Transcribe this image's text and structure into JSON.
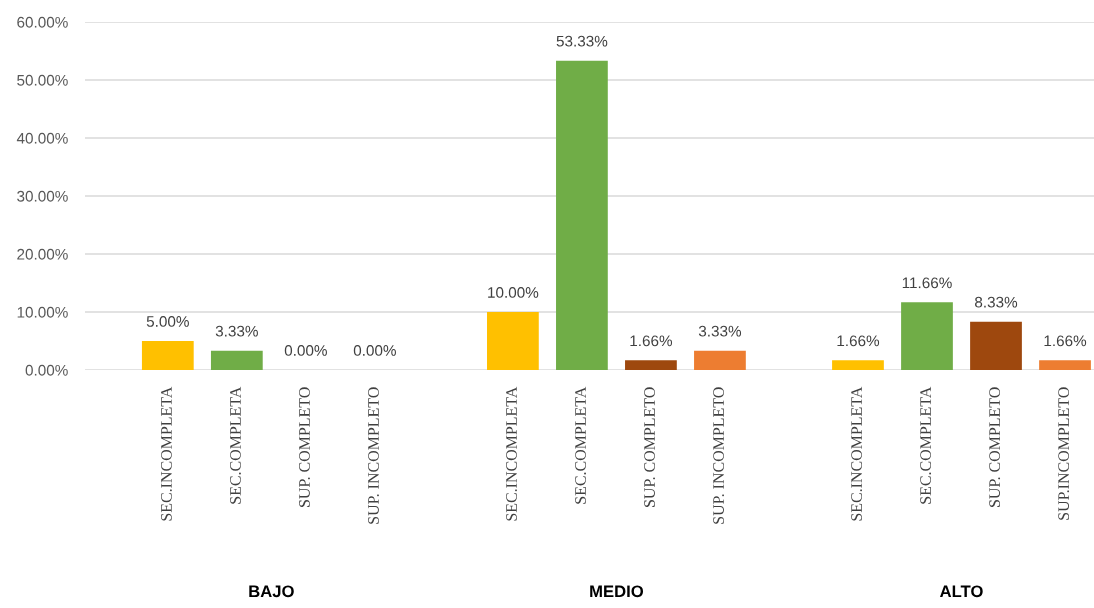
{
  "chart_data": {
    "type": "bar",
    "categories": [
      "SEC.INCOMPLETA",
      "SEC.COMPLETA",
      "SUP. COMPLETO",
      "SUP. INCOMPLETO",
      null,
      "SEC.INCOMPLETA",
      "SEC.COMPLETA",
      "SUP. COMPLETO",
      "SUP. INCOMPLETO",
      null,
      "SEC.INCOMPLETA",
      "SEC.COMPLETA",
      "SUP. COMPLETO",
      "SUP.INCOMPLETO"
    ],
    "values": [
      5.0,
      3.33,
      0.0,
      0.0,
      null,
      10.0,
      53.33,
      1.66,
      3.33,
      null,
      1.66,
      11.66,
      8.33,
      1.66
    ],
    "value_labels": [
      "5.00%",
      "3.33%",
      "0.00%",
      "0.00%",
      null,
      "10.00%",
      "53.33%",
      "1.66%",
      "3.33%",
      null,
      "1.66%",
      "11.66%",
      "8.33%",
      "1.66%"
    ],
    "colors": [
      "#ffc000",
      "#70ad47",
      "#9e480e",
      "#ed7d31",
      null,
      "#ffc000",
      "#70ad47",
      "#9e480e",
      "#ed7d31",
      null,
      "#ffc000",
      "#70ad47",
      "#9e480e",
      "#ed7d31"
    ],
    "ylim": [
      0,
      60
    ],
    "yticks": [
      {
        "value": 0,
        "label": "0.00%"
      },
      {
        "value": 10,
        "label": "10.00%"
      },
      {
        "value": 20,
        "label": "20.00%"
      },
      {
        "value": 30,
        "label": "30.00%"
      },
      {
        "value": 40,
        "label": "40.00%"
      },
      {
        "value": 50,
        "label": "50.00%"
      },
      {
        "value": 60,
        "label": "60.00%"
      }
    ],
    "grid": "y",
    "legend": false,
    "annotations": [
      "BAJO",
      "MEDIO",
      "ALTO"
    ]
  }
}
